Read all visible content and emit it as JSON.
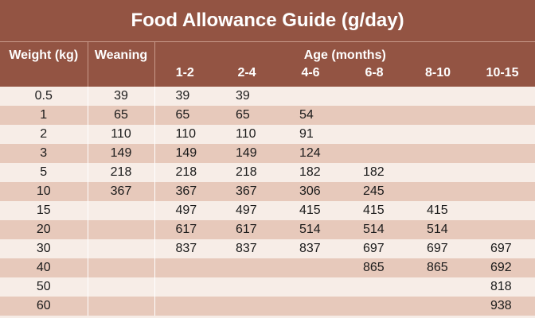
{
  "title": "Food Allowance Guide (g/day)",
  "headers": {
    "weight": "Weight (kg)",
    "weaning": "Weaning",
    "age_group": "Age (months)",
    "age_columns": [
      "1-2",
      "2-4",
      "4-6",
      "6-8",
      "8-10",
      "10-15"
    ]
  },
  "rows": [
    {
      "weight": "0.5",
      "weaning": "39",
      "ages": [
        "39",
        "39",
        "",
        "",
        "",
        ""
      ]
    },
    {
      "weight": "1",
      "weaning": "65",
      "ages": [
        "65",
        "65",
        "54",
        "",
        "",
        ""
      ]
    },
    {
      "weight": "2",
      "weaning": "110",
      "ages": [
        "110",
        "110",
        "91",
        "",
        "",
        ""
      ]
    },
    {
      "weight": "3",
      "weaning": "149",
      "ages": [
        "149",
        "149",
        "124",
        "",
        "",
        ""
      ]
    },
    {
      "weight": "5",
      "weaning": "218",
      "ages": [
        "218",
        "218",
        "182",
        "182",
        "",
        ""
      ]
    },
    {
      "weight": "10",
      "weaning": "367",
      "ages": [
        "367",
        "367",
        "306",
        "245",
        "",
        ""
      ]
    },
    {
      "weight": "15",
      "weaning": "",
      "ages": [
        "497",
        "497",
        "415",
        "415",
        "415",
        ""
      ]
    },
    {
      "weight": "20",
      "weaning": "",
      "ages": [
        "617",
        "617",
        "514",
        "514",
        "514",
        ""
      ]
    },
    {
      "weight": "30",
      "weaning": "",
      "ages": [
        "837",
        "837",
        "837",
        "697",
        "697",
        "697"
      ]
    },
    {
      "weight": "40",
      "weaning": "",
      "ages": [
        "",
        "",
        "",
        "865",
        "865",
        "692"
      ]
    },
    {
      "weight": "50",
      "weaning": "",
      "ages": [
        "",
        "",
        "",
        "",
        "",
        "818"
      ]
    },
    {
      "weight": "60",
      "weaning": "",
      "ages": [
        "",
        "",
        "",
        "",
        "",
        "938"
      ]
    }
  ],
  "colors": {
    "header_bg": "#935443",
    "row_light": "#f7ede7",
    "row_dark": "#e7c9bb"
  }
}
